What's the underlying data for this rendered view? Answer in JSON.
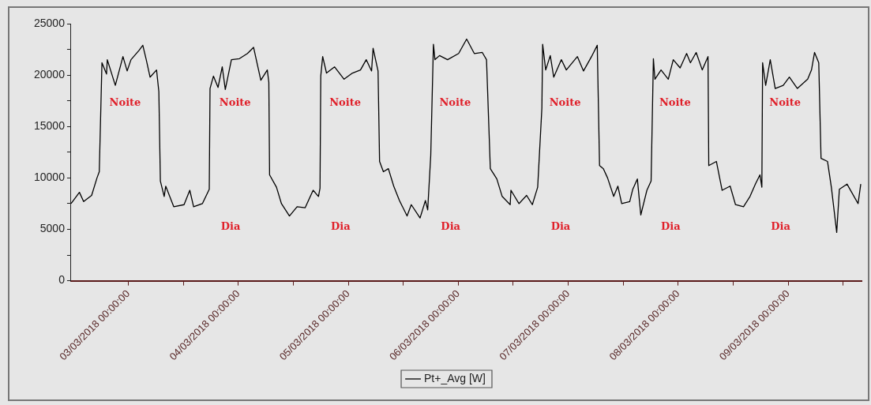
{
  "chart_data": {
    "type": "line",
    "series": [
      {
        "name": "Pt+_Avg [W]",
        "color": "#000000",
        "x": [
          "2018-03-02T11:30",
          "2018-03-02T13:20",
          "2018-03-02T14:15",
          "2018-03-02T16:00",
          "2018-03-02T17:10",
          "2018-03-02T17:40",
          "2018-03-02T18:15",
          "2018-03-02T19:15",
          "2018-03-02T19:25",
          "2018-03-02T21:10",
          "2018-03-02T22:50",
          "2018-03-02T23:45",
          "2018-03-03T00:35",
          "2018-03-03T02:20",
          "2018-03-03T03:10",
          "2018-03-03T03:55",
          "2018-03-03T04:45",
          "2018-03-03T06:10",
          "2018-03-03T06:40",
          "2018-03-03T07:00",
          "2018-03-03T07:50",
          "2018-03-03T08:10",
          "2018-03-03T09:55",
          "2018-03-03T12:10",
          "2018-03-03T13:25",
          "2018-03-03T14:15",
          "2018-03-03T16:10",
          "2018-03-03T17:40",
          "2018-03-03T17:50",
          "2018-03-03T18:35",
          "2018-03-03T19:35",
          "2018-03-03T20:30",
          "2018-03-03T21:10",
          "2018-03-03T22:30",
          "2018-03-04T00:15",
          "2018-03-04T02:00",
          "2018-03-04T03:20",
          "2018-03-04T04:55",
          "2018-03-04T06:20",
          "2018-03-04T06:40",
          "2018-03-04T06:50",
          "2018-03-04T08:20",
          "2018-03-04T09:25",
          "2018-03-04T11:10",
          "2018-03-04T12:50",
          "2018-03-04T14:35",
          "2018-03-04T16:20",
          "2018-03-04T17:30",
          "2018-03-04T17:50",
          "2018-03-04T18:00",
          "2018-03-04T18:25",
          "2018-03-04T19:15",
          "2018-03-04T21:00",
          "2018-03-04T23:05",
          "2018-03-05T00:55",
          "2018-03-05T02:40",
          "2018-03-05T03:55",
          "2018-03-05T05:05",
          "2018-03-05T05:25",
          "2018-03-05T06:30",
          "2018-03-05T06:50",
          "2018-03-05T07:40",
          "2018-03-05T08:45",
          "2018-03-05T09:55",
          "2018-03-05T11:10",
          "2018-03-05T12:50",
          "2018-03-05T13:45",
          "2018-03-05T15:40",
          "2018-03-05T16:50",
          "2018-03-05T17:20",
          "2018-03-05T18:00",
          "2018-03-05T18:35",
          "2018-03-05T18:55",
          "2018-03-05T19:55",
          "2018-03-05T21:40",
          "2018-03-06T00:05",
          "2018-03-06T01:50",
          "2018-03-06T03:30",
          "2018-03-06T05:15",
          "2018-03-06T06:10",
          "2018-03-06T07:00",
          "2018-03-06T08:25",
          "2018-03-06T09:35",
          "2018-03-06T11:20",
          "2018-03-06T11:30",
          "2018-03-06T13:15",
          "2018-03-06T14:55",
          "2018-03-06T16:10",
          "2018-03-06T17:20",
          "2018-03-06T18:15",
          "2018-03-06T18:25",
          "2018-03-06T19:05",
          "2018-03-06T20:05",
          "2018-03-06T20:50",
          "2018-03-06T22:30",
          "2018-03-06T23:35",
          "2018-03-07T02:00",
          "2018-03-07T03:20",
          "2018-03-07T05:05",
          "2018-03-07T06:20",
          "2018-03-07T06:50",
          "2018-03-07T07:40",
          "2018-03-07T08:35",
          "2018-03-07T09:55",
          "2018-03-07T10:50",
          "2018-03-07T11:40",
          "2018-03-07T13:25",
          "2018-03-07T14:05",
          "2018-03-07T15:05",
          "2018-03-07T15:50",
          "2018-03-07T17:10",
          "2018-03-07T18:05",
          "2018-03-07T18:35",
          "2018-03-07T18:55",
          "2018-03-07T20:15",
          "2018-03-07T21:50",
          "2018-03-07T22:55",
          "2018-03-08T00:25",
          "2018-03-08T01:50",
          "2018-03-08T02:40",
          "2018-03-08T03:55",
          "2018-03-08T05:15",
          "2018-03-08T06:30",
          "2018-03-08T06:40",
          "2018-03-08T08:20",
          "2018-03-08T09:35",
          "2018-03-08T11:20",
          "2018-03-08T12:30",
          "2018-03-08T14:15",
          "2018-03-08T15:40",
          "2018-03-08T16:50",
          "2018-03-08T17:50",
          "2018-03-08T18:15",
          "2018-03-08T18:25",
          "2018-03-08T19:05",
          "2018-03-08T20:05",
          "2018-03-08T21:10",
          "2018-03-08T22:55",
          "2018-03-09T00:15",
          "2018-03-09T02:00",
          "2018-03-09T04:15",
          "2018-03-09T05:05",
          "2018-03-09T05:45",
          "2018-03-09T06:40",
          "2018-03-09T07:10",
          "2018-03-09T08:35",
          "2018-03-09T09:25",
          "2018-03-09T10:35",
          "2018-03-09T11:10",
          "2018-03-09T12:50",
          "2018-03-09T15:15",
          "2018-03-09T15:50"
        ],
        "values": [
          7500,
          8600,
          7700,
          8300,
          10000,
          10600,
          21200,
          20100,
          21500,
          19000,
          21800,
          20400,
          21500,
          22400,
          22900,
          21500,
          19800,
          20500,
          18400,
          9700,
          8200,
          9200,
          7200,
          7400,
          8800,
          7200,
          7500,
          8900,
          18700,
          19900,
          18800,
          20800,
          18600,
          21500,
          21600,
          22100,
          22700,
          19500,
          20500,
          19300,
          10300,
          9100,
          7500,
          6300,
          7200,
          7100,
          8800,
          8200,
          9000,
          19900,
          21800,
          20200,
          20800,
          19600,
          20200,
          20500,
          21500,
          20400,
          22600,
          20400,
          11600,
          10600,
          10900,
          9200,
          7800,
          6300,
          7400,
          6100,
          7800,
          6900,
          12200,
          23000,
          21500,
          21900,
          21500,
          22100,
          23500,
          22100,
          22200,
          21500,
          10900,
          9900,
          8200,
          7400,
          8800,
          7500,
          8300,
          7400,
          9100,
          16800,
          23000,
          20500,
          21900,
          19800,
          21500,
          20500,
          21800,
          20400,
          21800,
          22900,
          11200,
          10900,
          10000,
          8200,
          9200,
          7500,
          7700,
          8900,
          9900,
          6400,
          8800,
          9700,
          21600,
          19600,
          20500,
          19600,
          21500,
          20700,
          22100,
          21200,
          22200,
          20500,
          21800,
          11200,
          11600,
          8800,
          9200,
          7400,
          7200,
          8200,
          9400,
          10300,
          9100,
          21200,
          19000,
          21500,
          18700,
          19000,
          19800,
          18700,
          19600,
          20500,
          22200,
          21200,
          11900,
          11600,
          9100,
          4700,
          8900,
          9400,
          7500,
          9400
        ]
      }
    ],
    "xlim": [
      "2018-03-02T11:30",
      "2018-03-09T16:00"
    ],
    "xticks": [
      {
        "value": "2018-03-03T00:00",
        "label": "03/03/2018 00:00:00"
      },
      {
        "value": "2018-03-03T12:00",
        "label": null
      },
      {
        "value": "2018-03-04T00:00",
        "label": "04/03/2018 00:00:00"
      },
      {
        "value": "2018-03-04T12:00",
        "label": null
      },
      {
        "value": "2018-03-05T00:00",
        "label": "05/03/2018 00:00:00"
      },
      {
        "value": "2018-03-05T12:00",
        "label": null
      },
      {
        "value": "2018-03-06T00:00",
        "label": "06/03/2018 00:00:00"
      },
      {
        "value": "2018-03-06T12:00",
        "label": null
      },
      {
        "value": "2018-03-07T00:00",
        "label": "07/03/2018 00:00:00"
      },
      {
        "value": "2018-03-07T12:00",
        "label": null
      },
      {
        "value": "2018-03-08T00:00",
        "label": "08/03/2018 00:00:00"
      },
      {
        "value": "2018-03-08T12:00",
        "label": null
      },
      {
        "value": "2018-03-09T00:00",
        "label": "09/03/2018 00:00:00"
      },
      {
        "value": "2018-03-09T12:00",
        "label": null
      }
    ],
    "ylim": [
      0,
      25000
    ],
    "yticks": [
      0,
      {
        "value": 2500,
        "label": null
      },
      5000,
      {
        "value": 7500,
        "label": null
      },
      10000,
      {
        "value": 12500,
        "label": null
      },
      15000,
      {
        "value": 17500,
        "label": null
      },
      20000,
      {
        "value": 22500,
        "label": null
      },
      25000
    ],
    "annotations": [
      "Noite",
      "Dia",
      "Noite",
      "Dia",
      "Noite",
      "Dia",
      "Noite",
      "Dia",
      "Noite",
      "Dia",
      "Noite",
      "Dia",
      "Noite"
    ],
    "legend": "bottom",
    "marker": "none",
    "line_style": "solid"
  }
}
